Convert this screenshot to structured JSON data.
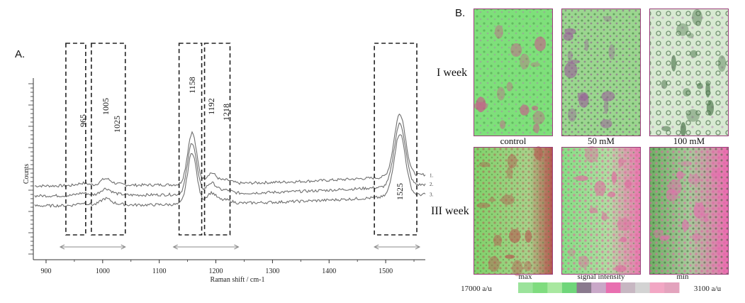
{
  "panel_a_label": "A.",
  "panel_b_label": "B.",
  "chart_data": {
    "type": "line",
    "xlabel": "Raman shift / cm-1",
    "ylabel": "Counts",
    "xlim": [
      880,
      1570
    ],
    "x_ticks": [
      900,
      1000,
      1100,
      1200,
      1300,
      1400,
      1500
    ],
    "grid": false,
    "series": [
      {
        "name": "1.",
        "offset": 2.0
      },
      {
        "name": "2.",
        "offset": 1.0
      },
      {
        "name": "3.",
        "offset": 0.0
      }
    ],
    "peaks": [
      {
        "position": 965,
        "height": 0.25,
        "width": 10
      },
      {
        "position": 1005,
        "height": 0.65,
        "width": 9
      },
      {
        "position": 1025,
        "height": 0.12,
        "width": 12
      },
      {
        "position": 1158,
        "height": 5.2,
        "width": 8
      },
      {
        "position": 1192,
        "height": 1.1,
        "width": 9
      },
      {
        "position": 1218,
        "height": 0.35,
        "width": 10
      },
      {
        "position": 1525,
        "height": 6.3,
        "width": 10
      }
    ],
    "peak_labels": [
      "965",
      "1005",
      "1025",
      "1158",
      "1192",
      "1218",
      "1525"
    ],
    "highlight_ranges": [
      [
        935,
        970
      ],
      [
        980,
        1040
      ],
      [
        1135,
        1175
      ],
      [
        1180,
        1225
      ],
      [
        1480,
        1555
      ]
    ]
  },
  "panel_b": {
    "row_labels": [
      "I week",
      "III week"
    ],
    "column_labels": [
      "control",
      "50 mM",
      "100 mM"
    ],
    "colorbar": {
      "left_value": "17000 a/u",
      "right_value": "3100 a/u",
      "max_label": "max",
      "mid_label": "signal intensity",
      "min_label": "min",
      "colors": [
        "#9be39b",
        "#7fdc7f",
        "#a8e8a0",
        "#6fd67a",
        "#8a7a8e",
        "#c9a8c8",
        "#e86fb0",
        "#c7b7c2",
        "#d3d3d3",
        "#f2a7c4",
        "#e3a3bd"
      ]
    },
    "images": [
      {
        "name": "I week control",
        "base": "#7ee07a",
        "spot": "#c95a8a"
      },
      {
        "name": "I week 50 mM",
        "base": "#9bd68f",
        "spot": "#9a5f9a"
      },
      {
        "name": "I week 100 mM",
        "base": "#d8ead2",
        "spot": "#3f6b3f"
      },
      {
        "name": "III week control",
        "base": "#8fdd6a",
        "spot": "#b5554f"
      },
      {
        "name": "III week 50 mM",
        "base": "#8ee38a",
        "spot": "#e06aa0"
      },
      {
        "name": "III week 100 mM",
        "base": "#86c479",
        "spot": "#e66cb0"
      }
    ]
  }
}
